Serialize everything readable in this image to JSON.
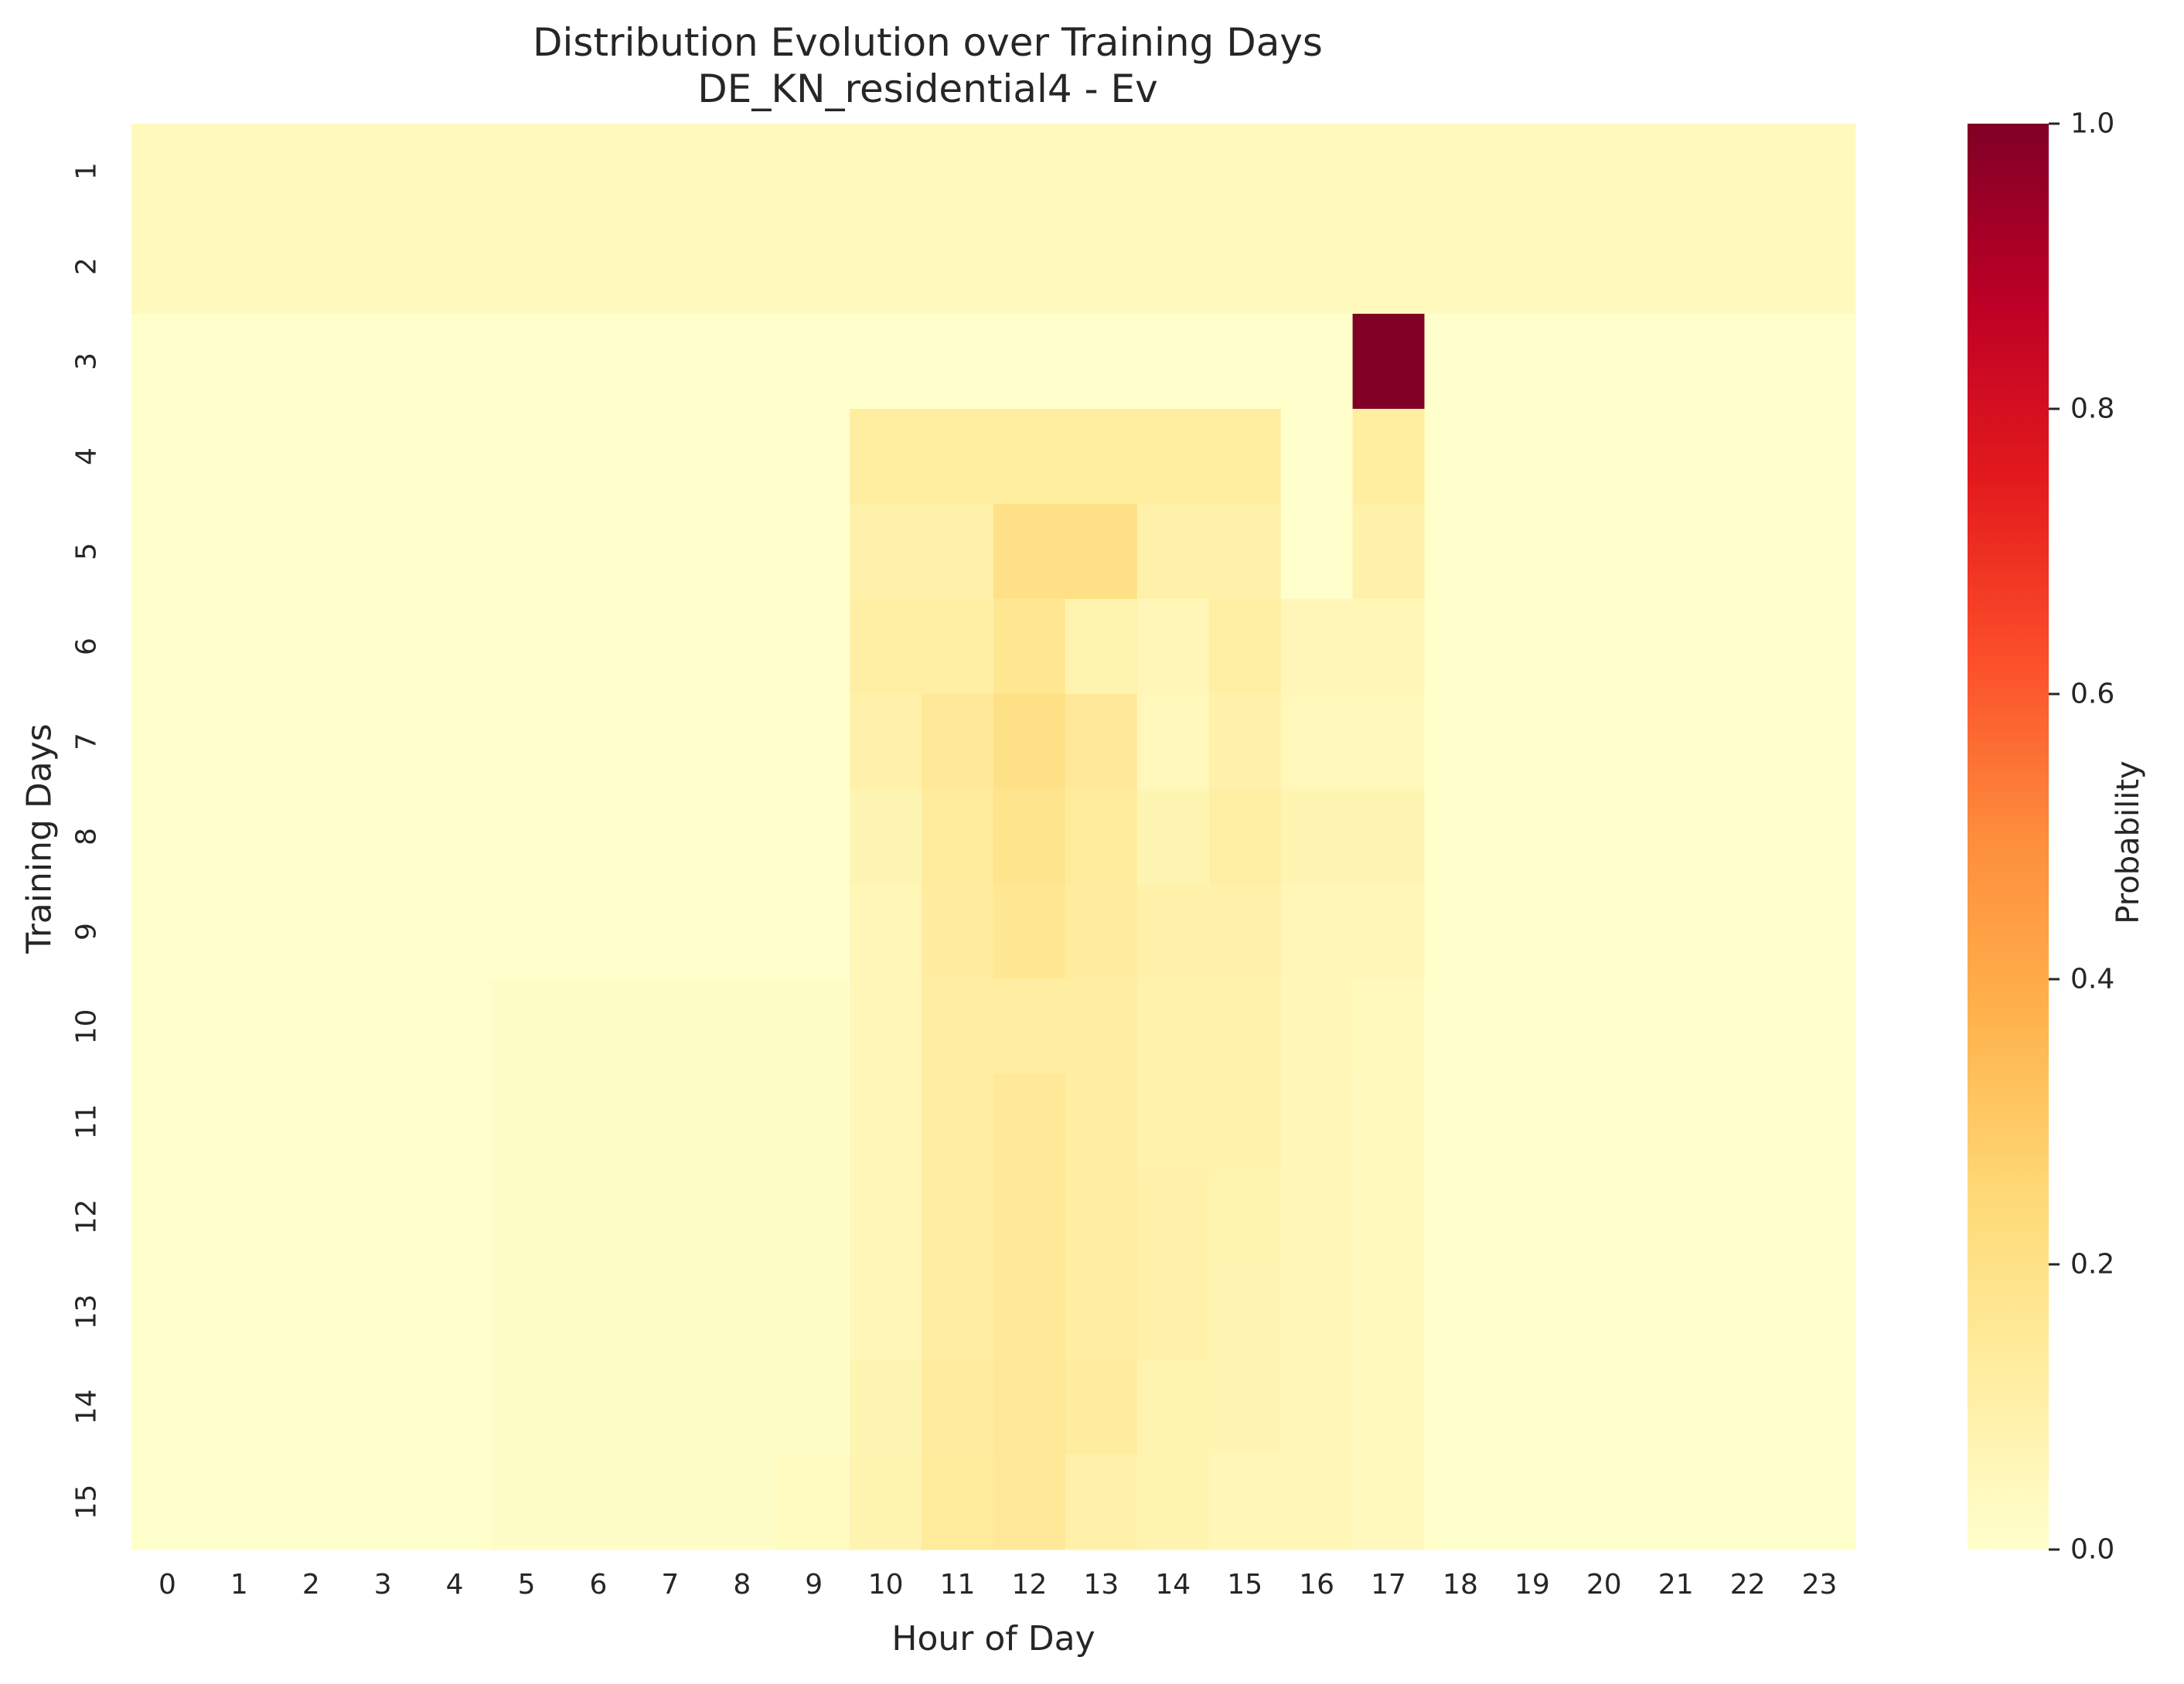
{
  "chart_data": {
    "type": "heatmap",
    "title": "Distribution Evolution over Training Days",
    "subtitle": "DE_KN_residential4 - Ev",
    "xlabel": "Hour of Day",
    "ylabel": "Training Days",
    "colorbar_label": "Probability",
    "colormap": "YlOrRd",
    "vmin": 0.0,
    "vmax": 1.0,
    "colorbar_ticks": [
      "0.0",
      "0.2",
      "0.4",
      "0.6",
      "0.8",
      "1.0"
    ],
    "x_categories": [
      "0",
      "1",
      "2",
      "3",
      "4",
      "5",
      "6",
      "7",
      "8",
      "9",
      "10",
      "11",
      "12",
      "13",
      "14",
      "15",
      "16",
      "17",
      "18",
      "19",
      "20",
      "21",
      "22",
      "23"
    ],
    "y_categories": [
      "1",
      "2",
      "3",
      "4",
      "5",
      "6",
      "7",
      "8",
      "9",
      "10",
      "11",
      "12",
      "13",
      "14",
      "15"
    ],
    "values": [
      [
        0.042,
        0.042,
        0.042,
        0.042,
        0.042,
        0.042,
        0.042,
        0.042,
        0.042,
        0.042,
        0.042,
        0.042,
        0.042,
        0.042,
        0.042,
        0.042,
        0.042,
        0.042,
        0.042,
        0.042,
        0.042,
        0.042,
        0.042,
        0.042
      ],
      [
        0.042,
        0.042,
        0.042,
        0.042,
        0.042,
        0.042,
        0.042,
        0.042,
        0.042,
        0.042,
        0.042,
        0.042,
        0.042,
        0.042,
        0.042,
        0.042,
        0.042,
        0.042,
        0.042,
        0.042,
        0.042,
        0.042,
        0.042,
        0.042
      ],
      [
        0,
        0,
        0,
        0,
        0,
        0,
        0,
        0,
        0,
        0,
        0,
        0,
        0,
        0,
        0,
        0,
        0,
        1.0,
        0,
        0,
        0,
        0,
        0,
        0
      ],
      [
        0,
        0,
        0,
        0,
        0,
        0,
        0,
        0,
        0,
        0,
        0.125,
        0.125,
        0.125,
        0.125,
        0.125,
        0.125,
        0,
        0.125,
        0,
        0,
        0,
        0,
        0,
        0
      ],
      [
        0,
        0,
        0,
        0,
        0,
        0,
        0,
        0,
        0,
        0,
        0.1,
        0.1,
        0.2,
        0.2,
        0.1,
        0.1,
        0,
        0.1,
        0,
        0,
        0,
        0,
        0,
        0
      ],
      [
        0,
        0,
        0,
        0,
        0,
        0,
        0,
        0,
        0,
        0,
        0.11,
        0.11,
        0.17,
        0.08,
        0.06,
        0.11,
        0.06,
        0.06,
        0,
        0,
        0,
        0,
        0,
        0
      ],
      [
        0,
        0,
        0,
        0,
        0,
        0,
        0,
        0,
        0,
        0,
        0.1,
        0.15,
        0.2,
        0.15,
        0.05,
        0.1,
        0.05,
        0.05,
        0,
        0,
        0,
        0,
        0,
        0
      ],
      [
        0,
        0,
        0,
        0,
        0,
        0,
        0,
        0,
        0,
        0,
        0.07,
        0.14,
        0.18,
        0.14,
        0.07,
        0.11,
        0.07,
        0.07,
        0,
        0,
        0,
        0,
        0,
        0
      ],
      [
        0,
        0,
        0,
        0,
        0,
        0,
        0,
        0,
        0,
        0,
        0.06,
        0.13,
        0.16,
        0.13,
        0.1,
        0.1,
        0.06,
        0.06,
        0,
        0,
        0,
        0,
        0,
        0
      ],
      [
        0,
        0,
        0,
        0,
        0,
        0.015,
        0.015,
        0.015,
        0.015,
        0.015,
        0.06,
        0.12,
        0.12,
        0.12,
        0.09,
        0.09,
        0.06,
        0.045,
        0,
        0,
        0,
        0,
        0,
        0
      ],
      [
        0,
        0,
        0,
        0,
        0,
        0.015,
        0.015,
        0.015,
        0.015,
        0.015,
        0.06,
        0.12,
        0.15,
        0.12,
        0.09,
        0.09,
        0.06,
        0.04,
        0,
        0,
        0,
        0,
        0,
        0
      ],
      [
        0,
        0,
        0,
        0,
        0,
        0.015,
        0.015,
        0.015,
        0.015,
        0.015,
        0.06,
        0.12,
        0.15,
        0.12,
        0.1,
        0.08,
        0.06,
        0.04,
        0,
        0,
        0,
        0,
        0,
        0
      ],
      [
        0,
        0,
        0,
        0,
        0,
        0.015,
        0.015,
        0.015,
        0.015,
        0.015,
        0.06,
        0.12,
        0.15,
        0.12,
        0.1,
        0.07,
        0.06,
        0.04,
        0,
        0,
        0,
        0,
        0,
        0
      ],
      [
        0,
        0,
        0,
        0,
        0,
        0.015,
        0.015,
        0.015,
        0.015,
        0.015,
        0.07,
        0.13,
        0.15,
        0.13,
        0.08,
        0.07,
        0.06,
        0.04,
        0,
        0,
        0,
        0,
        0,
        0
      ],
      [
        0,
        0,
        0,
        0,
        0,
        0.015,
        0.015,
        0.015,
        0.015,
        0.03,
        0.08,
        0.14,
        0.15,
        0.1,
        0.08,
        0.06,
        0.06,
        0.04,
        0,
        0,
        0,
        0,
        0,
        0
      ]
    ]
  }
}
